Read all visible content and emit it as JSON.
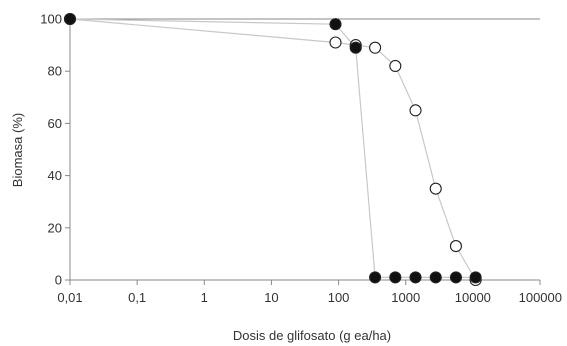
{
  "chart_data": {
    "type": "scatter",
    "title": "",
    "xlabel": "Dosis de glifosato (g ea/ha)",
    "ylabel": "Biomasa (%)",
    "xscale": "log",
    "xlim": [
      0.01,
      100000
    ],
    "ylim": [
      0,
      100
    ],
    "xticks": [
      0.01,
      0.1,
      1,
      10,
      100,
      1000,
      10000,
      100000
    ],
    "xtick_labels": [
      "0,01",
      "0,1",
      "1",
      "10",
      "100",
      "1000",
      "10000",
      "100000"
    ],
    "yticks": [
      0,
      20,
      40,
      60,
      80,
      100
    ],
    "ytick_labels": [
      "0",
      "20",
      "40",
      "60",
      "80",
      "100"
    ],
    "grid": "horizontal line at 100",
    "legend": "none",
    "series": [
      {
        "marker": "filled",
        "color": "#111111",
        "x": [
          0.01,
          90,
          180,
          350,
          700,
          1400,
          2800,
          5600,
          11000
        ],
        "y": [
          100,
          98,
          89,
          1,
          1,
          1,
          1,
          1,
          1
        ]
      },
      {
        "marker": "open",
        "color": "#ffffff",
        "x": [
          0.01,
          90,
          180,
          350,
          700,
          1400,
          2800,
          5600,
          11000
        ],
        "y": [
          100,
          91,
          90,
          89,
          82,
          65,
          35,
          13,
          0
        ]
      }
    ],
    "line_color": "#c8c8c8",
    "axis_color": "#888888"
  }
}
